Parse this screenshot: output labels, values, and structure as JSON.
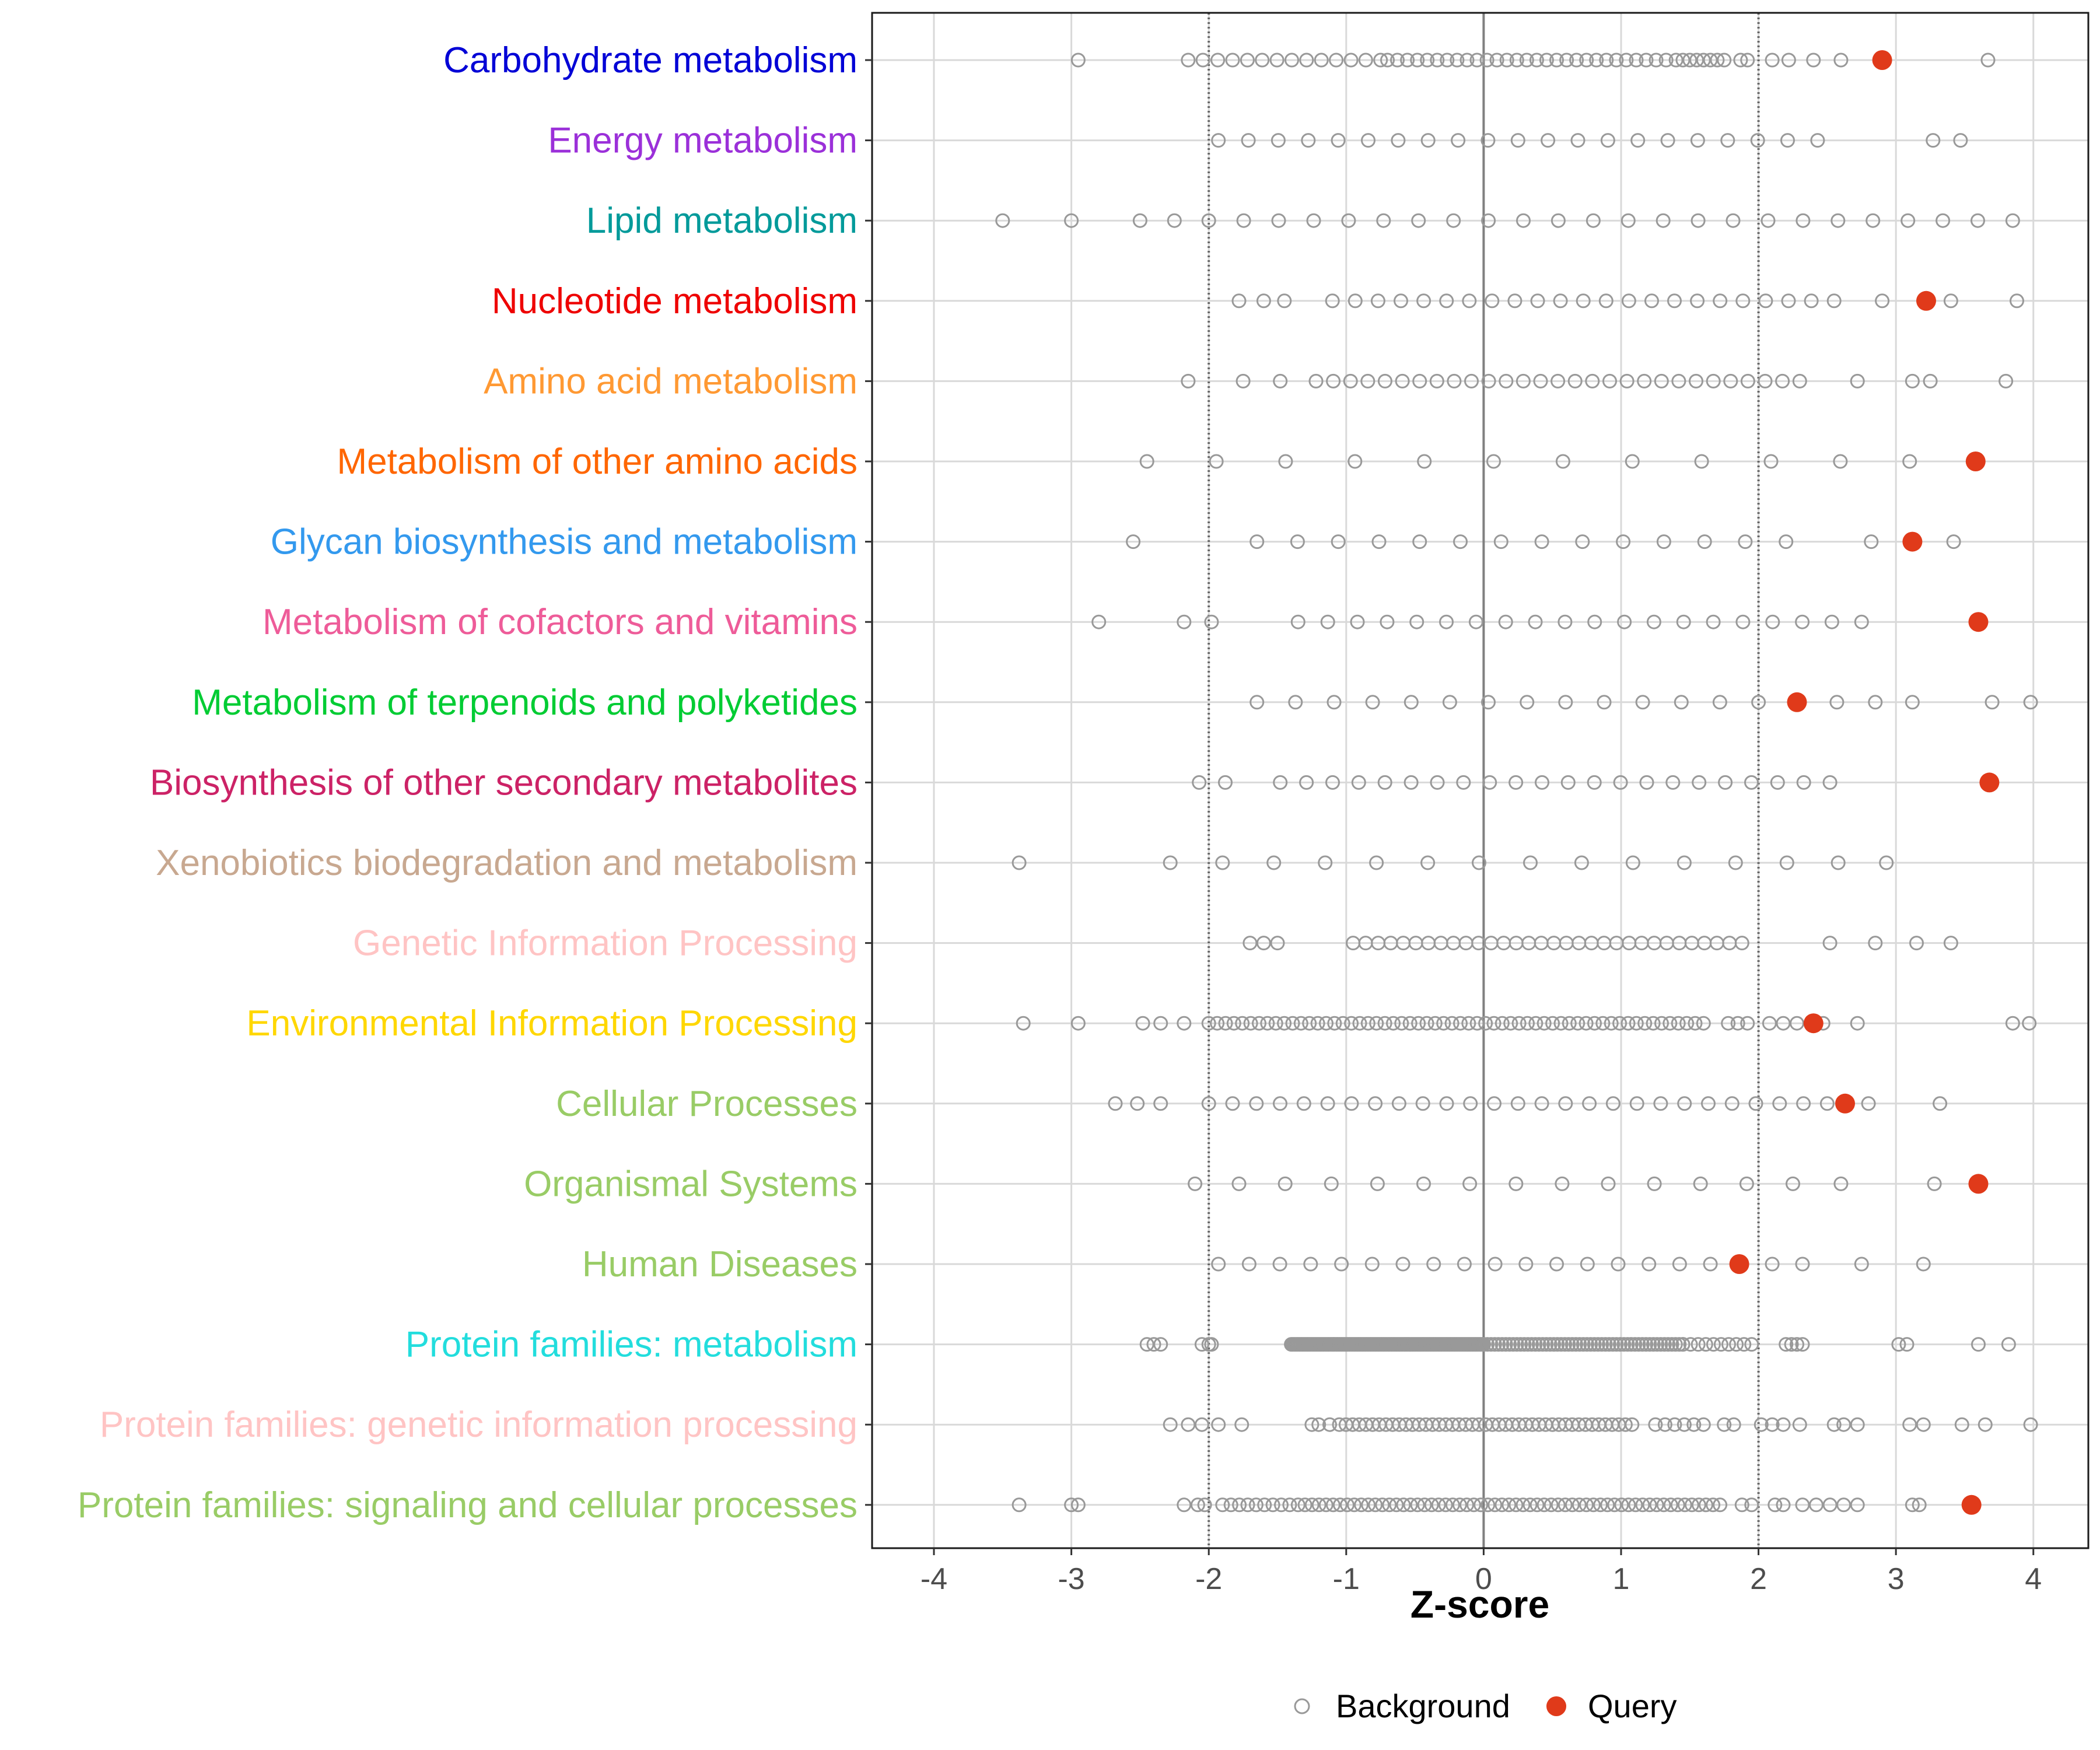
{
  "chart_data": {
    "type": "scatter",
    "xlabel": "Z-score",
    "xlim": [
      -4.45,
      4.4
    ],
    "x_ticks": [
      -4,
      -3,
      -2,
      -1,
      0,
      1,
      2,
      3,
      4
    ],
    "reference_lines": {
      "solid": [
        0
      ],
      "dotted": [
        -2,
        2
      ]
    },
    "legend": [
      {
        "name": "Background",
        "marker": "open-circle",
        "color": "#999999"
      },
      {
        "name": "Query",
        "marker": "filled-circle",
        "color": "#e03a1a"
      }
    ],
    "categories": [
      {
        "label": "Carbohydrate metabolism",
        "color": "#0000d6",
        "query": 2.9,
        "background": {
          "clusters": [
            [
              -2.15,
              -0.75,
              14
            ],
            [
              -0.7,
              1.4,
              30
            ],
            [
              1.45,
              1.75,
              7
            ]
          ],
          "points": [
            -2.95,
            1.87,
            1.92,
            2.1,
            2.22,
            2.4,
            2.6,
            3.67
          ]
        }
      },
      {
        "label": "Energy metabolism",
        "color": "#9b30d9",
        "query": null,
        "background": {
          "clusters": [
            [
              -1.93,
              2.43,
              21
            ]
          ],
          "points": [
            3.27,
            3.47
          ]
        }
      },
      {
        "label": "Lipid metabolism",
        "color": "#009a9a",
        "query": null,
        "background": {
          "clusters": [
            [
              -2.0,
              3.85,
              24
            ]
          ],
          "points": [
            -3.5,
            -3.0,
            -2.5,
            -2.25
          ]
        }
      },
      {
        "label": "Nucleotide metabolism",
        "color": "#ee0000",
        "query": 3.22,
        "background": {
          "clusters": [
            [
              -1.1,
              2.55,
              23
            ]
          ],
          "points": [
            -1.78,
            -1.6,
            -1.45,
            2.9,
            3.4,
            3.88
          ]
        }
      },
      {
        "label": "Amino acid metabolism",
        "color": "#ff9933",
        "query": null,
        "background": {
          "clusters": [
            [
              -1.22,
              2.3,
              29
            ]
          ],
          "points": [
            -2.15,
            -1.75,
            -1.48,
            2.72,
            3.12,
            3.25,
            3.8
          ]
        }
      },
      {
        "label": "Metabolism of other amino acids",
        "color": "#ff6600",
        "query": 3.58,
        "background": {
          "clusters": [
            [
              -2.45,
              3.1,
              12
            ]
          ],
          "points": []
        }
      },
      {
        "label": "Glycan biosynthesis and metabolism",
        "color": "#3399ee",
        "query": 3.12,
        "background": {
          "clusters": [
            [
              -1.65,
              2.2,
              14
            ]
          ],
          "points": [
            -2.55,
            2.82,
            3.42
          ]
        }
      },
      {
        "label": "Metabolism of cofactors and vitamins",
        "color": "#ee5c99",
        "query": 3.6,
        "background": {
          "clusters": [
            [
              -1.35,
              2.75,
              20
            ]
          ],
          "points": [
            -2.8,
            -2.18,
            -1.98
          ]
        }
      },
      {
        "label": "Metabolism of terpenoids and polyketides",
        "color": "#00cc33",
        "query": 2.28,
        "background": {
          "clusters": [
            [
              -1.65,
              2.0,
              14
            ]
          ],
          "points": [
            2.57,
            2.85,
            3.12,
            3.7,
            3.98
          ]
        }
      },
      {
        "label": "Biosynthesis of other secondary metabolites",
        "color": "#cc2266",
        "query": 3.68,
        "background": {
          "clusters": [
            [
              -1.48,
              2.52,
              22
            ]
          ],
          "points": [
            -2.07,
            -1.88
          ]
        }
      },
      {
        "label": "Xenobiotics biodegradation and metabolism",
        "color": "#c8a890",
        "query": null,
        "background": {
          "clusters": [
            [
              -1.9,
              2.58,
              13
            ]
          ],
          "points": [
            -3.38,
            -2.28,
            2.93
          ]
        }
      },
      {
        "label": "Genetic Information Processing",
        "color": "#ffc4c4",
        "query": null,
        "background": {
          "clusters": [
            [
              -0.95,
              1.88,
              32
            ]
          ],
          "points": [
            -1.7,
            -1.6,
            -1.5,
            2.52,
            2.85,
            3.15,
            3.4
          ]
        }
      },
      {
        "label": "Environmental Information Processing",
        "color": "#ffd700",
        "query": 2.4,
        "background": {
          "clusters": [
            [
              -2.0,
              1.6,
              60
            ]
          ],
          "points": [
            -3.35,
            -2.95,
            -2.48,
            -2.35,
            -2.18,
            1.78,
            1.85,
            1.92,
            2.08,
            2.18,
            2.28,
            2.47,
            2.72,
            3.85,
            3.97
          ]
        }
      },
      {
        "label": "Cellular Processes",
        "color": "#99cc66",
        "query": 2.63,
        "background": {
          "clusters": [
            [
              -2.0,
              2.5,
              27
            ]
          ],
          "points": [
            -2.68,
            -2.52,
            -2.35,
            2.8,
            3.32
          ]
        }
      },
      {
        "label": "Organismal Systems",
        "color": "#99cc66",
        "query": 3.6,
        "background": {
          "clusters": [
            [
              -1.78,
              2.25,
              13
            ]
          ],
          "points": [
            -2.1,
            2.6,
            3.28
          ]
        }
      },
      {
        "label": "Human Diseases",
        "color": "#99cc66",
        "query": 1.86,
        "background": {
          "clusters": [
            [
              -1.93,
              1.65,
              17
            ]
          ],
          "points": [
            2.1,
            2.32,
            2.75,
            3.2
          ]
        }
      },
      {
        "label": "Protein families: metabolism",
        "color": "#22dddd",
        "query": null,
        "background": {
          "clusters": [
            [
              -1.4,
              0.0,
              120
            ],
            [
              0.0,
              1.45,
              55
            ],
            [
              1.45,
              1.95,
              10
            ],
            [
              2.2,
              2.32,
              4
            ]
          ],
          "points": [
            -2.45,
            -2.4,
            -2.35,
            -2.05,
            -2.0,
            -1.98,
            3.02,
            3.08,
            3.6,
            3.82
          ]
        }
      },
      {
        "label": "Protein families: genetic information processing",
        "color": "#ffc4c4",
        "query": null,
        "background": {
          "clusters": [
            [
              -1.05,
              1.08,
              45
            ],
            [
              1.25,
              1.6,
              6
            ]
          ],
          "points": [
            -2.28,
            -2.15,
            -2.05,
            -1.93,
            -1.76,
            -1.25,
            -1.2,
            -1.12,
            1.75,
            1.82,
            2.02,
            2.1,
            2.18,
            2.3,
            2.55,
            2.62,
            2.72,
            3.1,
            3.2,
            3.48,
            3.65,
            3.98
          ]
        }
      },
      {
        "label": "Protein families: signaling and cellular processes",
        "color": "#99cc66",
        "query": 3.55,
        "background": {
          "clusters": [
            [
              -1.9,
              -1.35,
              10
            ],
            [
              -1.3,
              1.72,
              60
            ]
          ],
          "points": [
            -3.38,
            -3.0,
            -2.95,
            -2.18,
            -2.08,
            -2.03,
            1.88,
            1.95,
            2.12,
            2.18,
            2.32,
            2.42,
            2.52,
            2.62,
            2.72,
            3.12,
            3.17
          ]
        }
      }
    ]
  }
}
